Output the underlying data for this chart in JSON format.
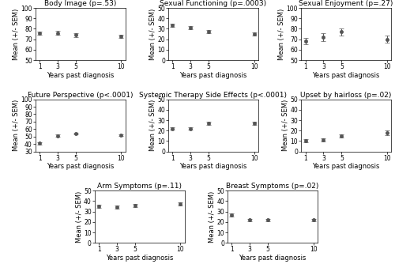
{
  "subplots": [
    {
      "title": "Body Image (p=.53)",
      "ylabel": "Mean (+/- SEM)",
      "xlabel": "Years past diagnosis",
      "ylim": [
        50,
        100
      ],
      "yticks": [
        50,
        60,
        70,
        80,
        90,
        100
      ],
      "x": [
        1,
        3,
        5,
        10
      ],
      "y": [
        76,
        76,
        74,
        73
      ],
      "yerr": [
        1.5,
        2.0,
        1.8,
        1.5
      ]
    },
    {
      "title": "Sexual Functioning (p=.0003)",
      "ylabel": "Mean (+/- SEM)",
      "xlabel": "Years past diagnosis",
      "ylim": [
        0,
        50
      ],
      "yticks": [
        0,
        10,
        20,
        30,
        40,
        50
      ],
      "x": [
        1,
        3,
        5,
        10
      ],
      "y": [
        33,
        31,
        27,
        25
      ],
      "yerr": [
        1.5,
        1.5,
        1.5,
        1.5
      ]
    },
    {
      "title": "Sexual Enjoyment (p=.27)",
      "ylabel": "Mean (+/- SEM)",
      "xlabel": "Years past diagnosis",
      "ylim": [
        50,
        100
      ],
      "yticks": [
        50,
        60,
        70,
        80,
        90,
        100
      ],
      "x": [
        1,
        3,
        5,
        10
      ],
      "y": [
        68,
        72,
        77,
        70
      ],
      "yerr": [
        3.0,
        3.5,
        3.5,
        3.5
      ]
    },
    {
      "title": "Future Perspective (p<.0001)",
      "ylabel": "Mean (+/- SEM)",
      "xlabel": "Years past diagnosis",
      "ylim": [
        30,
        100
      ],
      "yticks": [
        30,
        40,
        50,
        60,
        70,
        80,
        90,
        100
      ],
      "x": [
        1,
        3,
        5,
        10
      ],
      "y": [
        41,
        51,
        54,
        52
      ],
      "yerr": [
        1.5,
        1.5,
        1.5,
        1.5
      ]
    },
    {
      "title": "Systemic Therapy Side Effects (p<.0001)",
      "ylabel": "Mean (+/- SEM)",
      "xlabel": "Years past diagnosis",
      "ylim": [
        0,
        50
      ],
      "yticks": [
        0,
        10,
        20,
        30,
        40,
        50
      ],
      "x": [
        1,
        3,
        5,
        10
      ],
      "y": [
        22,
        22,
        27,
        27
      ],
      "yerr": [
        1.0,
        1.0,
        1.5,
        1.5
      ]
    },
    {
      "title": "Upset by hairloss (p=.02)",
      "ylabel": "Mean (+/- SEM)",
      "xlabel": "Years past diagnosis",
      "ylim": [
        0,
        50
      ],
      "yticks": [
        0,
        10,
        20,
        30,
        40,
        50
      ],
      "x": [
        1,
        3,
        5,
        10
      ],
      "y": [
        10,
        11,
        15,
        18
      ],
      "yerr": [
        1.5,
        1.5,
        1.5,
        2.5
      ]
    },
    {
      "title": "Arm Symptoms (p=.11)",
      "ylabel": "Mean (+/- SEM)",
      "xlabel": "Years past diagnosis",
      "ylim": [
        0,
        50
      ],
      "yticks": [
        0,
        10,
        20,
        30,
        40,
        50
      ],
      "x": [
        1,
        3,
        5,
        10
      ],
      "y": [
        35,
        34,
        36,
        37
      ],
      "yerr": [
        1.5,
        1.5,
        1.5,
        1.5
      ]
    },
    {
      "title": "Breast Symptoms (p=.02)",
      "ylabel": "Mean (+/- SEM)",
      "xlabel": "Years past diagnosis",
      "ylim": [
        0,
        50
      ],
      "yticks": [
        0,
        10,
        20,
        30,
        40,
        50
      ],
      "x": [
        1,
        3,
        5,
        10
      ],
      "y": [
        27,
        22,
        22,
        22
      ],
      "yerr": [
        1.5,
        1.0,
        1.0,
        1.0
      ]
    }
  ],
  "line_color": "#555555",
  "marker": "o",
  "marker_size": 3,
  "ecolor": "#555555",
  "capsize": 2,
  "title_fontsize": 6.5,
  "label_fontsize": 6,
  "tick_fontsize": 5.5,
  "fig_width": 5.0,
  "fig_height": 3.34
}
